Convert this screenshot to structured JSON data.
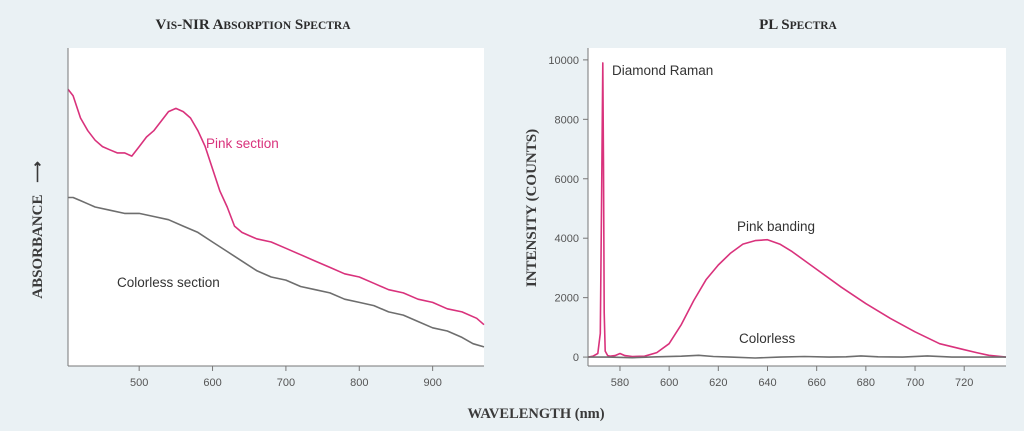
{
  "chart_data": [
    {
      "type": "line",
      "title": "Vis-NIR Absorption Spectra",
      "title_parts": [
        [
          "V",
          "IS",
          "-NIR "
        ],
        [
          "A",
          "BSORPTION",
          " "
        ],
        [
          "S",
          "PECTRA",
          ""
        ]
      ],
      "ylabel": "ABSORBANCE",
      "ylabel_arrow": "⟶",
      "xlim": [
        403,
        970
      ],
      "ylim": [
        0,
        1
      ],
      "xticks": [
        500,
        600,
        700,
        800,
        900
      ],
      "series": [
        {
          "name": "Pink section",
          "color": "#d9327c",
          "x": [
            403,
            410,
            420,
            430,
            440,
            450,
            460,
            470,
            480,
            490,
            500,
            510,
            520,
            530,
            540,
            550,
            560,
            570,
            580,
            590,
            600,
            610,
            620,
            630,
            640,
            650,
            660,
            680,
            700,
            720,
            740,
            760,
            780,
            800,
            820,
            840,
            860,
            880,
            900,
            920,
            940,
            960,
            970
          ],
          "y": [
            0.87,
            0.85,
            0.78,
            0.74,
            0.71,
            0.69,
            0.68,
            0.67,
            0.67,
            0.66,
            0.69,
            0.72,
            0.74,
            0.77,
            0.8,
            0.81,
            0.8,
            0.78,
            0.74,
            0.69,
            0.62,
            0.55,
            0.5,
            0.44,
            0.42,
            0.41,
            0.4,
            0.39,
            0.37,
            0.35,
            0.33,
            0.31,
            0.29,
            0.28,
            0.26,
            0.24,
            0.23,
            0.21,
            0.2,
            0.18,
            0.17,
            0.15,
            0.13
          ]
        },
        {
          "name": "Colorless section",
          "color": "#6e6e6e",
          "x": [
            403,
            410,
            420,
            430,
            440,
            460,
            480,
            500,
            520,
            540,
            560,
            580,
            600,
            620,
            640,
            660,
            680,
            700,
            720,
            740,
            760,
            780,
            800,
            820,
            840,
            860,
            880,
            900,
            920,
            940,
            955,
            970
          ],
          "y": [
            0.53,
            0.53,
            0.52,
            0.51,
            0.5,
            0.49,
            0.48,
            0.48,
            0.47,
            0.46,
            0.44,
            0.42,
            0.39,
            0.36,
            0.33,
            0.3,
            0.28,
            0.27,
            0.25,
            0.24,
            0.23,
            0.21,
            0.2,
            0.19,
            0.17,
            0.16,
            0.14,
            0.12,
            0.11,
            0.09,
            0.07,
            0.06
          ]
        }
      ],
      "annotations": [
        "Pink section",
        "Colorless section"
      ]
    },
    {
      "type": "line",
      "title": "PL Spectra",
      "title_parts": [
        [
          "PL ",
          "",
          ""
        ],
        [
          "S",
          "PECTRA",
          ""
        ]
      ],
      "ylabel": "INTENSITY (COUNTS)",
      "xlim": [
        567,
        737
      ],
      "ylim": [
        -300,
        10400
      ],
      "xticks": [
        580,
        600,
        620,
        640,
        660,
        680,
        700,
        720
      ],
      "yticks": [
        0,
        2000,
        4000,
        6000,
        8000,
        10000
      ],
      "series": [
        {
          "name": "Pink banding",
          "color": "#d9327c",
          "x": [
            567,
            569,
            571,
            572,
            572.5,
            573,
            573.3,
            573.6,
            574,
            575,
            576,
            578,
            580,
            582,
            585,
            590,
            595,
            600,
            605,
            610,
            615,
            620,
            625,
            630,
            635,
            640,
            645,
            650,
            655,
            660,
            670,
            680,
            690,
            700,
            710,
            720,
            725,
            730,
            737
          ],
          "y": [
            0,
            30,
            120,
            800,
            5000,
            9900,
            6500,
            1500,
            200,
            50,
            30,
            50,
            120,
            50,
            20,
            30,
            150,
            450,
            1100,
            1900,
            2600,
            3100,
            3500,
            3800,
            3920,
            3950,
            3800,
            3550,
            3250,
            2950,
            2350,
            1800,
            1300,
            850,
            450,
            250,
            150,
            60,
            0
          ]
        },
        {
          "name": "Colorless",
          "color": "#6e6e6e",
          "x": [
            567,
            575,
            585,
            595,
            605,
            612,
            618,
            625,
            635,
            645,
            655,
            665,
            672,
            678,
            685,
            695,
            705,
            715,
            725,
            737
          ],
          "y": [
            0,
            0,
            -20,
            10,
            30,
            60,
            20,
            0,
            -30,
            0,
            20,
            0,
            10,
            40,
            10,
            0,
            40,
            0,
            0,
            0
          ]
        }
      ],
      "annotations": [
        "Diamond Raman",
        "Pink banding",
        "Colorless"
      ]
    }
  ],
  "shared_xlabel": "WAVELENGTH (nm)"
}
